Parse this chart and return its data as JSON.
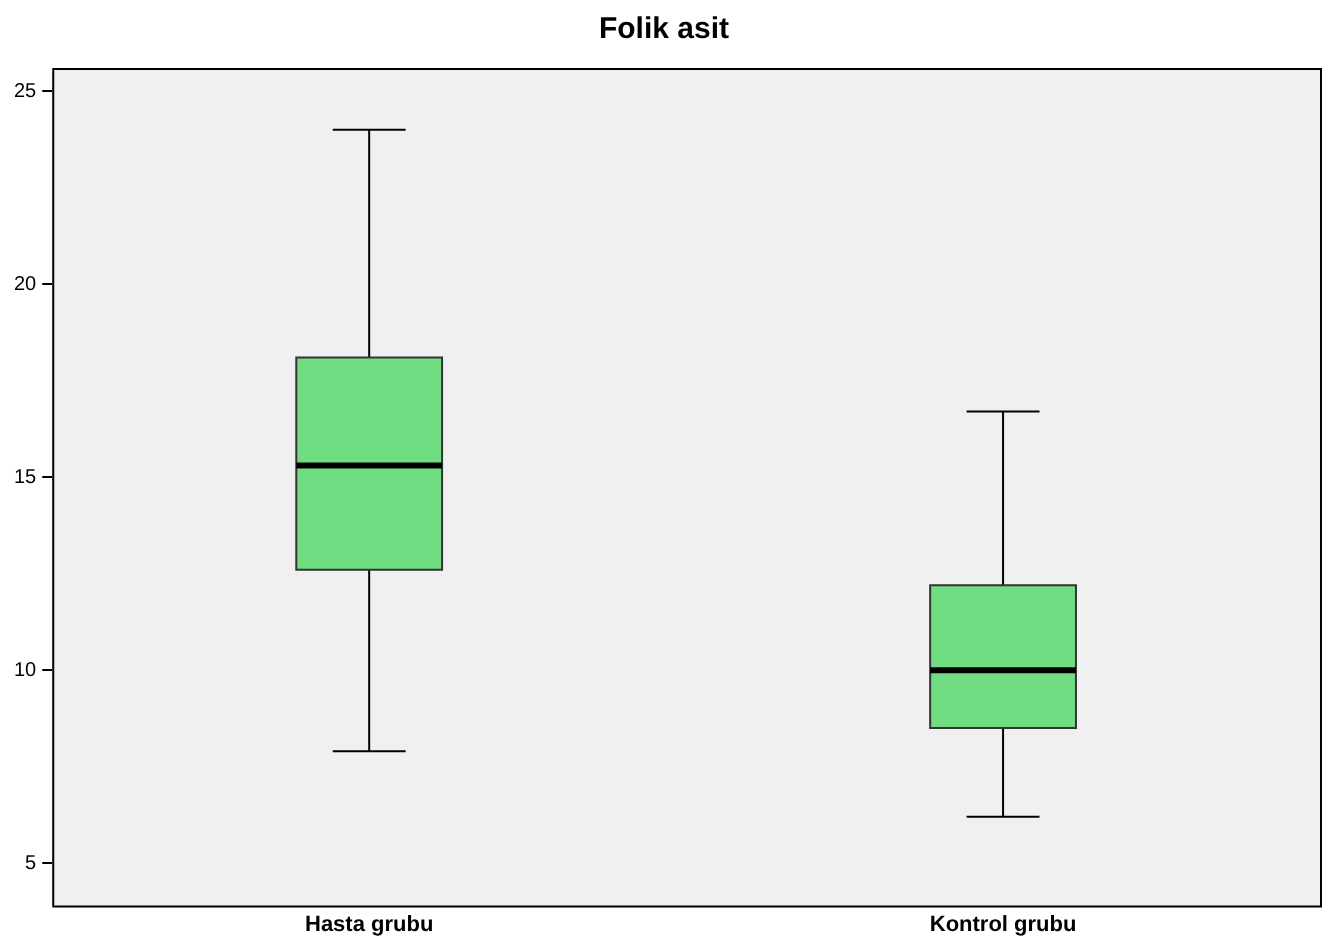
{
  "chart_data": {
    "type": "box",
    "title": "Folik asit",
    "categories": [
      "Hasta grubu",
      "Kontrol grubu"
    ],
    "color": "#70dd82",
    "boxes": [
      {
        "low": 7.9,
        "q1": 12.6,
        "median": 15.3,
        "q3": 18.1,
        "high": 24
      },
      {
        "low": 6.2,
        "q1": 8.5,
        "median": 10.0,
        "q3": 12.2,
        "high": 16.7
      }
    ],
    "ylim": [
      3.9,
      25.6
    ],
    "yticks": [
      5,
      10,
      15,
      20,
      25
    ]
  }
}
